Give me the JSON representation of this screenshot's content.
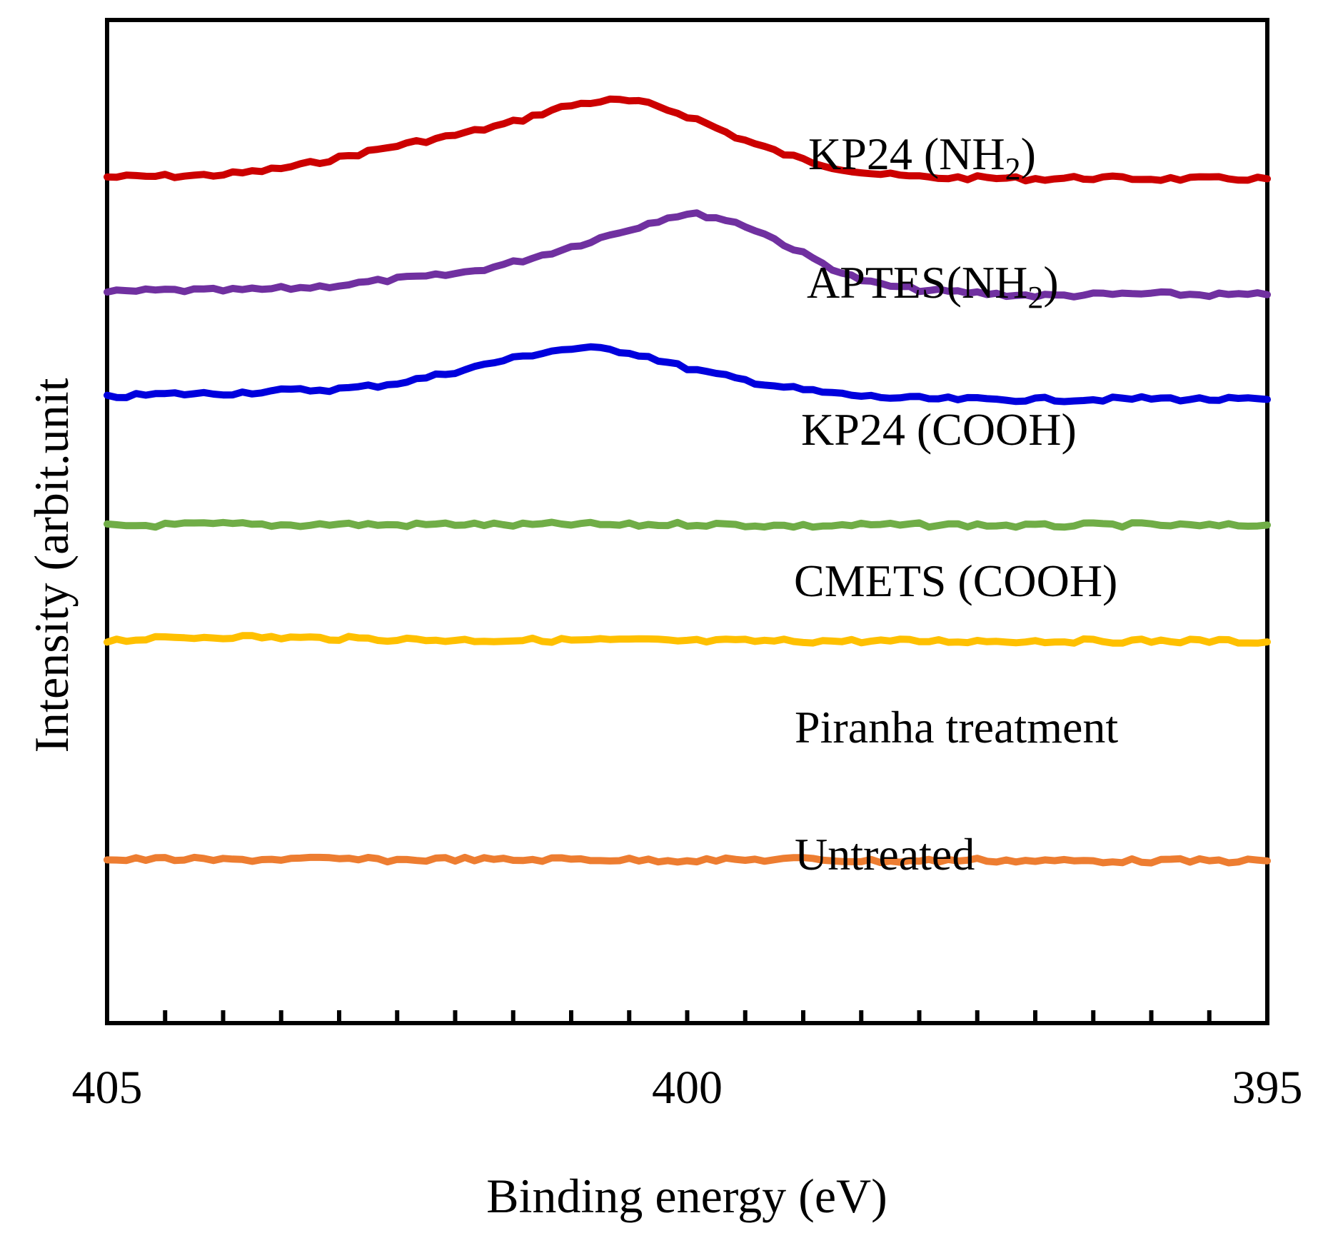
{
  "chart_data": {
    "type": "line",
    "title": "",
    "xlabel": "Binding energy (eV)",
    "ylabel": "Intensity (arbit.unit",
    "xlim": [
      405,
      395
    ],
    "x_reversed": true,
    "xticks": [
      "405",
      "400",
      "395"
    ],
    "yticks": [],
    "grid": false,
    "legend": "labels placed beside each curve",
    "x": [
      405.0,
      404.5,
      404.0,
      403.5,
      403.0,
      402.5,
      402.0,
      401.5,
      401.0,
      400.5,
      400.0,
      399.5,
      399.0,
      398.5,
      398.0,
      397.5,
      397.0,
      396.5,
      396.0,
      395.5,
      395.0
    ],
    "series": [
      {
        "name": "KP24 (NH",
        "name_sub": "2",
        "name_suffix": ")",
        "color": "#cc0000",
        "values": [
          9.7,
          9.71,
          9.73,
          9.8,
          9.92,
          10.06,
          10.18,
          10.33,
          10.52,
          10.57,
          10.4,
          10.12,
          9.9,
          9.76,
          9.7,
          9.69,
          9.68,
          9.69,
          9.68,
          9.68,
          9.68
        ]
      },
      {
        "name": "APTES(NH",
        "name_sub": "2",
        "name_suffix": ")",
        "color": "#7030a0",
        "values": [
          8.38,
          8.4,
          8.4,
          8.42,
          8.46,
          8.53,
          8.59,
          8.72,
          8.9,
          9.1,
          9.27,
          9.14,
          8.82,
          8.52,
          8.41,
          8.37,
          8.34,
          8.35,
          8.36,
          8.35,
          8.35
        ]
      },
      {
        "name": "KP24 (COOH)",
        "name_sub": "",
        "name_suffix": "",
        "color": "#0000dd",
        "values": [
          7.18,
          7.21,
          7.22,
          7.25,
          7.27,
          7.34,
          7.47,
          7.62,
          7.73,
          7.69,
          7.51,
          7.37,
          7.26,
          7.19,
          7.16,
          7.15,
          7.15,
          7.15,
          7.16,
          7.15,
          7.15
        ]
      },
      {
        "name": "CMETS (COOH)",
        "name_sub": "",
        "name_suffix": "",
        "color": "#70ad47",
        "values": [
          5.7,
          5.71,
          5.72,
          5.71,
          5.72,
          5.71,
          5.72,
          5.71,
          5.72,
          5.71,
          5.72,
          5.71,
          5.7,
          5.71,
          5.71,
          5.71,
          5.7,
          5.71,
          5.71,
          5.7,
          5.71
        ]
      },
      {
        "name": "Piranha treatment",
        "name_sub": "",
        "name_suffix": "",
        "color": "#ffc000",
        "values": [
          4.39,
          4.41,
          4.43,
          4.42,
          4.41,
          4.4,
          4.39,
          4.39,
          4.39,
          4.39,
          4.38,
          4.38,
          4.38,
          4.38,
          4.38,
          4.38,
          4.38,
          4.38,
          4.38,
          4.38,
          4.37
        ]
      },
      {
        "name": "Untreated",
        "name_sub": "",
        "name_suffix": "",
        "color": "#ed7d31",
        "values": [
          1.87,
          1.88,
          1.87,
          1.88,
          1.88,
          1.87,
          1.88,
          1.87,
          1.88,
          1.87,
          1.87,
          1.87,
          1.88,
          1.86,
          1.86,
          1.87,
          1.86,
          1.86,
          1.86,
          1.86,
          1.86
        ]
      }
    ],
    "ylim": [
      0,
      11.5
    ]
  }
}
